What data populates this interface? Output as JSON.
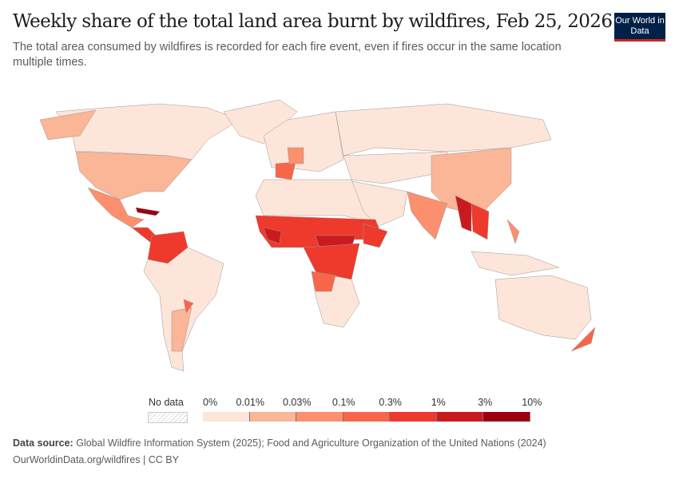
{
  "header": {
    "title": "Weekly share of the total land area burnt by wildfires, Feb 25, 2026",
    "subtitle": "The total area consumed by wildfires is recorded for each fire event, even if fires occur in the same location multiple times.",
    "logo": "Our World in Data"
  },
  "legend": {
    "no_data": "No data",
    "ticks": [
      "0%",
      "0.01%",
      "0.03%",
      "0.1%",
      "0.3%",
      "1%",
      "3%",
      "10%"
    ],
    "colors": [
      "#fde5da",
      "#fbb597",
      "#fb8f6e",
      "#f76649",
      "#ee3a2c",
      "#cb1a1e",
      "#9c0010"
    ]
  },
  "map": {
    "shapes": [
      {
        "region": "Canada",
        "bin": 0
      },
      {
        "region": "Alaska",
        "bin": 1
      },
      {
        "region": "Greenland",
        "bin": 0
      },
      {
        "region": "United States",
        "bin": 1
      },
      {
        "region": "Mexico",
        "bin": 2
      },
      {
        "region": "Central America",
        "bin": 4
      },
      {
        "region": "Cuba",
        "bin": 6
      },
      {
        "region": "Venezuela / Colombia",
        "bin": 4
      },
      {
        "region": "South America",
        "bin": 0
      },
      {
        "region": "Argentina",
        "bin": 1
      },
      {
        "region": "Paraguay",
        "bin": 3
      },
      {
        "region": "Europe",
        "bin": 0
      },
      {
        "region": "Spain",
        "bin": 3
      },
      {
        "region": "France",
        "bin": 2
      },
      {
        "region": "Russia",
        "bin": 0
      },
      {
        "region": "Central Asia",
        "bin": 0
      },
      {
        "region": "China",
        "bin": 1
      },
      {
        "region": "India",
        "bin": 2
      },
      {
        "region": "Myanmar",
        "bin": 5
      },
      {
        "region": "Thailand / Cambodia",
        "bin": 4
      },
      {
        "region": "Philippines",
        "bin": 2
      },
      {
        "region": "Middle East",
        "bin": 0
      },
      {
        "region": "North Africa",
        "bin": 0
      },
      {
        "region": "West Africa",
        "bin": 4
      },
      {
        "region": "Guinea",
        "bin": 5
      },
      {
        "region": "Central African Republic / South Sudan",
        "bin": 5
      },
      {
        "region": "Central Africa",
        "bin": 4
      },
      {
        "region": "Ethiopia",
        "bin": 4
      },
      {
        "region": "Southern Africa",
        "bin": 0
      },
      {
        "region": "Angola",
        "bin": 3
      },
      {
        "region": "Indonesia",
        "bin": 0
      },
      {
        "region": "Australia",
        "bin": 0
      },
      {
        "region": "New Zealand",
        "bin": 3
      }
    ]
  },
  "footer": {
    "source_label": "Data source:",
    "source": "Global Wildfire Information System (2025); Food and Agriculture Organization of the United Nations (2024)",
    "url": "OurWorldinData.org/wildfires | CC BY"
  }
}
